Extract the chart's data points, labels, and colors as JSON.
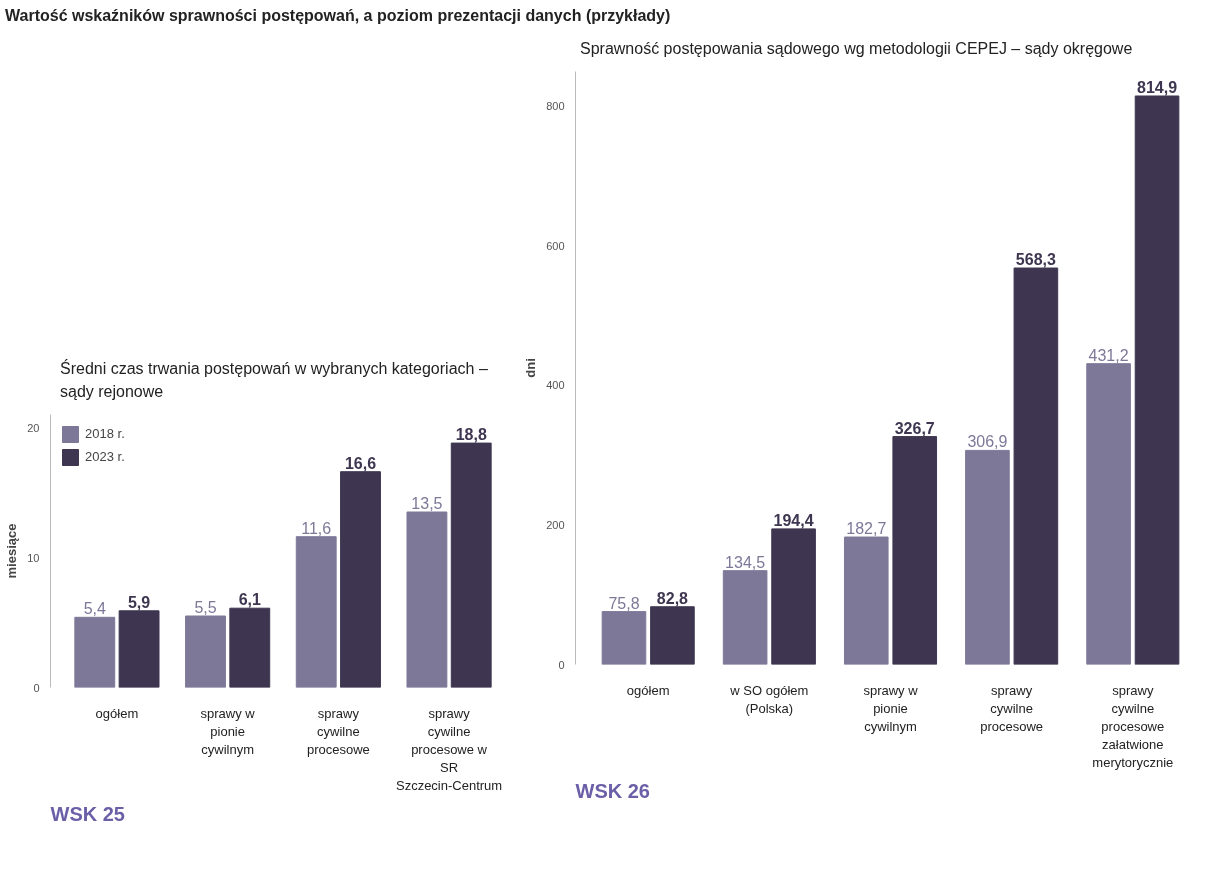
{
  "chart_data": [
    {
      "type": "bar",
      "title": "Wartość wskaźników sprawności postępowań, a poziom prezentacji danych (przykłady)",
      "subtitle": "Średni czas trwania postępowań w wybranych kategoriach – sądy rejonowe",
      "ylabel": "miesiące",
      "annotations": [
        "WSK 25"
      ],
      "categories": [
        "ogółem",
        "sprawy w pionie cywilnym",
        "sprawy cywilne procesowe",
        "sprawy cywilne procesowe w SR Szczecin-Centrum"
      ],
      "series": [
        {
          "name": "2018 r.",
          "color": "#7d7898",
          "values": [
            5.4,
            5.5,
            11.6,
            13.5
          ],
          "value_labels": [
            "5,4",
            "5,5",
            "11,6",
            "13,5"
          ]
        },
        {
          "name": "2023 r.",
          "color": "#3e3650",
          "values": [
            5.9,
            6.1,
            16.6,
            18.8
          ],
          "value_labels": [
            "5,9",
            "6,1",
            "16,6",
            "18,8"
          ]
        }
      ],
      "ylim": [
        0,
        21
      ],
      "yticks": [
        0,
        10,
        20
      ],
      "grid": false,
      "legend": "top left"
    },
    {
      "type": "bar",
      "subtitle": "Sprawność postępowania sądowego wg metodologii CEPEJ – sądy okręgowe",
      "ylabel": "dni",
      "annotations": [
        "WSK 26"
      ],
      "categories": [
        "ogółem",
        "w SO ogółem (Polska)",
        "sprawy w pionie cywilnym",
        "sprawy cywilne procesowe",
        "sprawy cywilne procesowe załatwione merytorycznie"
      ],
      "series": [
        {
          "color": "#7d7898",
          "values": [
            75.8,
            134.5,
            182.7,
            306.9,
            431.2
          ],
          "value_labels": [
            "75,8",
            "134,5",
            "182,7",
            "306,9",
            "431,2"
          ]
        },
        {
          "color": "#3e3650",
          "values": [
            82.8,
            194.4,
            326.7,
            568.3,
            814.9
          ],
          "value_labels": [
            "82,8",
            "194,4",
            "326,7",
            "568,3",
            "814,9"
          ]
        }
      ],
      "ylim": [
        0,
        850
      ],
      "yticks": [
        0,
        200,
        400,
        600,
        800
      ],
      "grid": false
    }
  ]
}
